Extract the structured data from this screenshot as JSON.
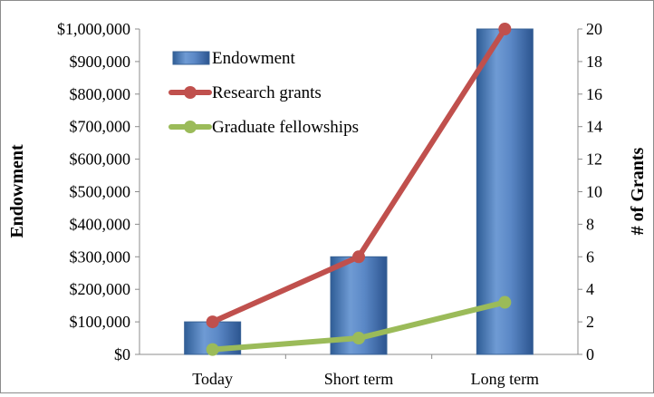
{
  "chart_data": {
    "type": "bar",
    "categories": [
      "Today",
      "Short term",
      "Long term"
    ],
    "series": [
      {
        "name": "Endowment",
        "type": "bar",
        "axis": "left",
        "values": [
          100000,
          300000,
          1000000
        ],
        "color": "#4f81bd"
      },
      {
        "name": "Research grants",
        "type": "line",
        "axis": "right",
        "values": [
          2,
          6,
          20
        ],
        "color": "#c0504d"
      },
      {
        "name": "Graduate fellowships",
        "type": "line",
        "axis": "right",
        "values": [
          0.3,
          1,
          3.2
        ],
        "color": "#9bbb59"
      }
    ],
    "ylabel": "Endowment",
    "y2label": "# of Grants",
    "ylim": [
      0,
      1000000
    ],
    "y2lim": [
      0,
      20
    ],
    "yticks": [
      "$0",
      "$100,000",
      "$200,000",
      "$300,000",
      "$400,000",
      "$500,000",
      "$600,000",
      "$700,000",
      "$800,000",
      "$900,000",
      "$1,000,000"
    ],
    "y2ticks": [
      "0",
      "2",
      "4",
      "6",
      "8",
      "10",
      "12",
      "14",
      "16",
      "18",
      "20"
    ],
    "legend_position": "top-left",
    "grid": false
  }
}
